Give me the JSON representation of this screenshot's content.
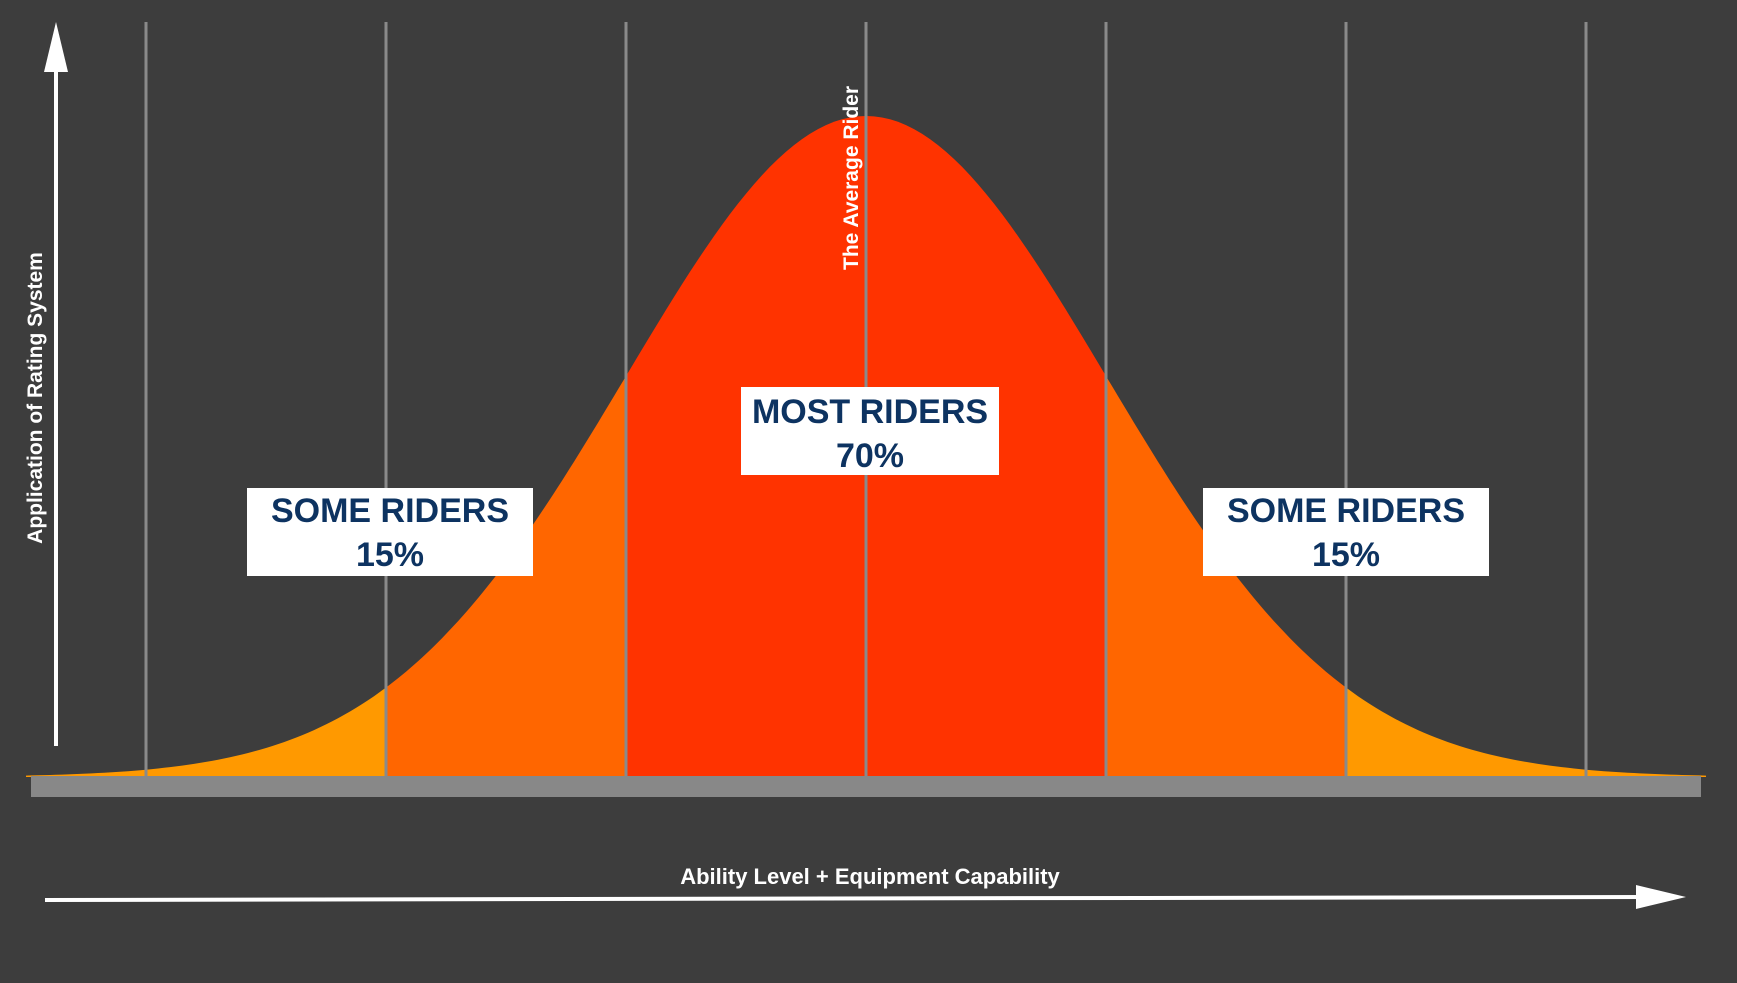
{
  "chart_data": {
    "type": "area",
    "title": "",
    "xlabel": "Ability Level + Equipment Capability",
    "ylabel": "Application of Rating System",
    "distribution": "normal",
    "mean_label": "The Average Rider",
    "bands": [
      {
        "name": "tail-left",
        "from_sd": -3.5,
        "to_sd": -2,
        "color": "#ff9900"
      },
      {
        "name": "some-left",
        "from_sd": -2,
        "to_sd": -1,
        "color": "#ff6600"
      },
      {
        "name": "most",
        "from_sd": -1,
        "to_sd": 1,
        "color": "#ff3300"
      },
      {
        "name": "some-right",
        "from_sd": 1,
        "to_sd": 2,
        "color": "#ff6600"
      },
      {
        "name": "tail-right",
        "from_sd": 2,
        "to_sd": 3.5,
        "color": "#ff9900"
      }
    ],
    "gridlines_sd": [
      -3,
      -2,
      -1,
      0,
      1,
      2,
      3
    ],
    "annotations": [
      {
        "id": "some-left",
        "line1": "SOME RIDERS",
        "line2": "15%",
        "at_sd": -2
      },
      {
        "id": "most",
        "line1": "MOST RIDERS",
        "line2": "70%",
        "at_sd": 0
      },
      {
        "id": "some-right",
        "line1": "SOME RIDERS",
        "line2": "15%",
        "at_sd": 2
      }
    ]
  },
  "colors": {
    "background": "#3d3d3d",
    "gridline": "#8a8a8a",
    "baseline": "#888888",
    "label_text": "#0d3361",
    "arrow": "#ffffff"
  }
}
